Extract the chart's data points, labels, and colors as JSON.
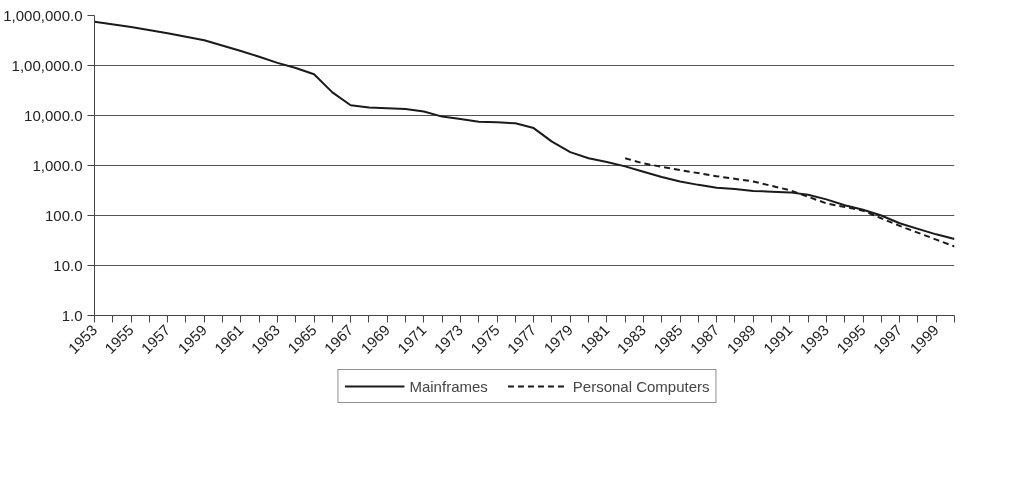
{
  "chart_data": {
    "type": "line",
    "log": true,
    "grid": "y",
    "legend": "bottom",
    "marker": "none",
    "xlim": [
      1953,
      2000
    ],
    "xticks": [
      1953,
      {
        "value": 1954,
        "label": null
      },
      1955,
      {
        "value": 1956,
        "label": null
      },
      1957,
      {
        "value": 1958,
        "label": null
      },
      1959,
      {
        "value": 1960,
        "label": null
      },
      1961,
      {
        "value": 1962,
        "label": null
      },
      1963,
      {
        "value": 1964,
        "label": null
      },
      1965,
      {
        "value": 1966,
        "label": null
      },
      1967,
      {
        "value": 1968,
        "label": null
      },
      1969,
      {
        "value": 1970,
        "label": null
      },
      1971,
      {
        "value": 1972,
        "label": null
      },
      1973,
      {
        "value": 1974,
        "label": null
      },
      1975,
      {
        "value": 1976,
        "label": null
      },
      1977,
      {
        "value": 1978,
        "label": null
      },
      1979,
      {
        "value": 1980,
        "label": null
      },
      1981,
      {
        "value": 1982,
        "label": null
      },
      1983,
      {
        "value": 1984,
        "label": null
      },
      1985,
      {
        "value": 1986,
        "label": null
      },
      1987,
      {
        "value": 1988,
        "label": null
      },
      1989,
      {
        "value": 1990,
        "label": null
      },
      1991,
      {
        "value": 1992,
        "label": null
      },
      1993,
      {
        "value": 1994,
        "label": null
      },
      1995,
      {
        "value": 1996,
        "label": null
      },
      1997,
      {
        "value": 1998,
        "label": null
      },
      1999,
      {
        "value": 2000,
        "label": null
      }
    ],
    "ylim": [
      1,
      1000000
    ],
    "yticks": [
      {
        "value": 1,
        "label": "1.0"
      },
      {
        "value": 10,
        "label": "10.0"
      },
      {
        "value": 100,
        "label": "100.0"
      },
      {
        "value": 1000,
        "label": "1,000.0"
      },
      {
        "value": 10000,
        "label": "10,000.0"
      },
      {
        "value": 100000,
        "label": "1,00,000.0"
      },
      {
        "value": 1000000,
        "label": "1,000,000.0"
      }
    ],
    "series": [
      {
        "name": "Mainframes",
        "color": "#1a1a1a",
        "line_style": "solid",
        "x": [
          1953,
          1955,
          1957,
          1959,
          1961,
          1962,
          1963,
          1964,
          1965,
          1966,
          1967,
          1968,
          1969,
          1970,
          1971,
          1972,
          1973,
          1974,
          1975,
          1976,
          1977,
          1978,
          1979,
          1980,
          1981,
          1982,
          1983,
          1984,
          1985,
          1986,
          1987,
          1988,
          1989,
          1990,
          1991,
          1992,
          1993,
          1994,
          1995,
          1996,
          1997,
          1998,
          1999,
          2000
        ],
        "values": [
          750000,
          590000,
          440000,
          320000,
          195000,
          150000,
          113000,
          89000,
          67000,
          29000,
          16000,
          14500,
          14000,
          13500,
          12000,
          9500,
          8500,
          7500,
          7300,
          7000,
          5600,
          3000,
          1850,
          1400,
          1180,
          960,
          750,
          590,
          480,
          410,
          360,
          340,
          310,
          300,
          290,
          260,
          210,
          160,
          130,
          100,
          70,
          54,
          42,
          34
        ]
      },
      {
        "name": "Personal Computers",
        "color": "#1a1a1a",
        "line_style": "dashed",
        "x": [
          1982,
          1983,
          1985,
          1987,
          1989,
          1991,
          1993,
          1995,
          1997,
          1999,
          2000
        ],
        "values": [
          1400,
          1100,
          810,
          610,
          480,
          320,
          175,
          125,
          62,
          33,
          24
        ]
      }
    ]
  }
}
